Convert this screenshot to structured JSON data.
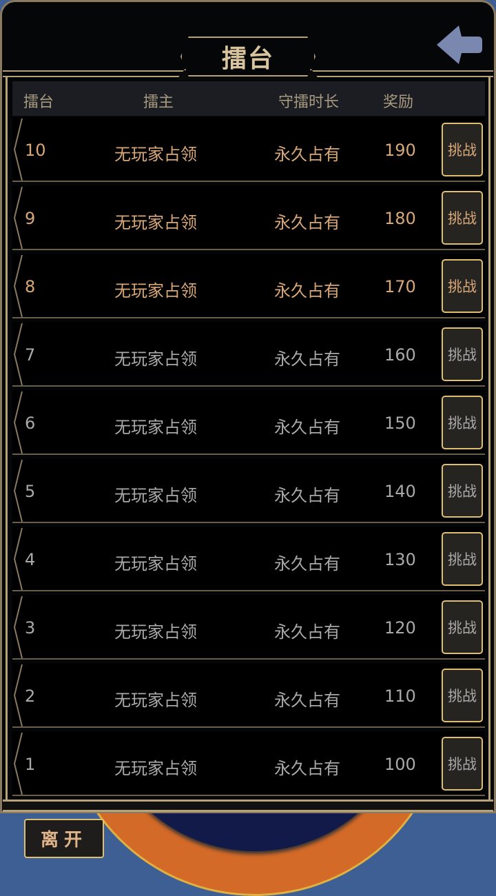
{
  "title": "擂台",
  "back_icon": "arrow-left-icon",
  "columns": [
    "擂台",
    "擂主",
    "守擂时长",
    "奖励"
  ],
  "rows": [
    {
      "rank": "10",
      "owner": "无玩家占领",
      "duration": "永久占有",
      "reward": "190",
      "button": "挑战",
      "highlight": true
    },
    {
      "rank": "9",
      "owner": "无玩家占领",
      "duration": "永久占有",
      "reward": "180",
      "button": "挑战",
      "highlight": true
    },
    {
      "rank": "8",
      "owner": "无玩家占领",
      "duration": "永久占有",
      "reward": "170",
      "button": "挑战",
      "highlight": true
    },
    {
      "rank": "7",
      "owner": "无玩家占领",
      "duration": "永久占有",
      "reward": "160",
      "button": "挑战",
      "highlight": false
    },
    {
      "rank": "6",
      "owner": "无玩家占领",
      "duration": "永久占有",
      "reward": "150",
      "button": "挑战",
      "highlight": false
    },
    {
      "rank": "5",
      "owner": "无玩家占领",
      "duration": "永久占有",
      "reward": "140",
      "button": "挑战",
      "highlight": false
    },
    {
      "rank": "4",
      "owner": "无玩家占领",
      "duration": "永久占有",
      "reward": "130",
      "button": "挑战",
      "highlight": false
    },
    {
      "rank": "3",
      "owner": "无玩家占领",
      "duration": "永久占有",
      "reward": "120",
      "button": "挑战",
      "highlight": false
    },
    {
      "rank": "2",
      "owner": "无玩家占领",
      "duration": "永久占有",
      "reward": "110",
      "button": "挑战",
      "highlight": false
    },
    {
      "rank": "1",
      "owner": "无玩家占领",
      "duration": "永久占有",
      "reward": "100",
      "button": "挑战",
      "highlight": false
    }
  ],
  "leave_label": "离开",
  "colors": {
    "highlight_text": "#d9a878",
    "normal_text": "#aaaaaa",
    "frame": "#b8a27a",
    "bg_blue": "#3d5f93"
  }
}
